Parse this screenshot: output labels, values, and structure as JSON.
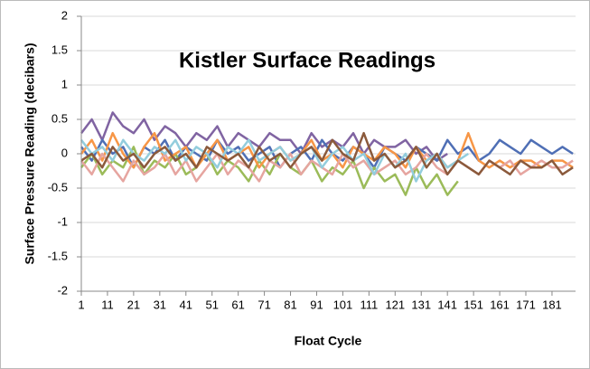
{
  "chart_data": {
    "type": "line",
    "title": "Kistler Surface Readings",
    "x_label": "Float Cycle",
    "y_label": "Surface Pressure Reading (decibars)",
    "x": [
      1,
      5,
      9,
      13,
      17,
      21,
      25,
      29,
      33,
      37,
      41,
      45,
      49,
      53,
      57,
      61,
      65,
      69,
      73,
      77,
      81,
      85,
      89,
      93,
      97,
      101,
      105,
      109,
      113,
      117,
      121,
      125,
      129,
      133,
      137,
      141,
      145,
      149,
      153,
      157,
      161,
      165,
      169,
      173,
      177,
      181,
      185,
      189
    ],
    "series": [
      {
        "color": "#8064a2",
        "values": [
          0.3,
          0.5,
          0.2,
          0.6,
          0.4,
          0.3,
          0.5,
          0.2,
          0.4,
          0.3,
          0.1,
          0.3,
          0.2,
          0.4,
          0.1,
          0.3,
          0.2,
          0.1,
          0.3,
          0.2,
          0.2,
          0.0,
          0.3,
          0.1,
          0.2,
          0.1,
          0.3,
          0.0,
          0.2,
          0.1,
          0.1,
          0.2,
          0.0,
          0.1,
          -0.1,
          0.0,
          null,
          null,
          null,
          null,
          null,
          null,
          null,
          null,
          null,
          null,
          null,
          null
        ]
      },
      {
        "color": "#4f6fb5",
        "values": [
          0.1,
          -0.1,
          0.2,
          0.0,
          0.1,
          -0.2,
          0.1,
          0.0,
          0.2,
          -0.1,
          0.1,
          0.0,
          -0.1,
          0.2,
          0.0,
          0.1,
          -0.1,
          0.0,
          0.1,
          -0.2,
          0.0,
          0.1,
          -0.1,
          0.2,
          0.0,
          -0.1,
          0.1,
          0.0,
          -0.2,
          0.1,
          0.0,
          -0.1,
          0.1,
          0.0,
          -0.1,
          0.2,
          0.0,
          0.1,
          -0.1,
          0.0,
          0.2,
          0.1,
          0.0,
          0.2,
          0.1,
          0.0,
          0.1,
          0.0
        ]
      },
      {
        "color": "#9bbb59",
        "values": [
          -0.2,
          0.0,
          -0.3,
          -0.1,
          -0.2,
          0.1,
          -0.3,
          -0.1,
          -0.2,
          0.0,
          -0.3,
          -0.2,
          0.0,
          -0.3,
          -0.1,
          -0.2,
          -0.4,
          -0.1,
          -0.3,
          0.0,
          -0.2,
          -0.3,
          -0.1,
          -0.4,
          -0.2,
          -0.3,
          -0.1,
          -0.5,
          -0.2,
          -0.4,
          -0.3,
          -0.6,
          -0.2,
          -0.5,
          -0.3,
          -0.6,
          -0.4,
          null,
          null,
          null,
          null,
          null,
          null,
          null,
          null,
          null,
          null,
          null
        ]
      },
      {
        "color": "#f79646",
        "values": [
          0.0,
          0.2,
          -0.1,
          0.3,
          0.0,
          -0.2,
          0.1,
          0.3,
          -0.1,
          0.0,
          0.1,
          -0.2,
          0.0,
          0.2,
          -0.1,
          0.0,
          0.1,
          -0.2,
          0.0,
          0.1,
          -0.1,
          0.0,
          0.2,
          -0.1,
          0.0,
          -0.2,
          0.1,
          0.0,
          -0.1,
          0.1,
          0.0,
          -0.2,
          0.1,
          -0.1,
          0.0,
          -0.2,
          -0.1,
          0.3,
          -0.1,
          -0.2,
          -0.1,
          -0.2,
          -0.1,
          -0.1,
          -0.2,
          -0.1,
          -0.1,
          -0.2
        ]
      },
      {
        "color": "#e6a5a0",
        "values": [
          -0.1,
          -0.3,
          0.0,
          -0.2,
          -0.4,
          -0.1,
          -0.3,
          -0.2,
          0.0,
          -0.3,
          -0.1,
          -0.4,
          -0.2,
          0.0,
          -0.3,
          -0.1,
          -0.2,
          -0.4,
          -0.1,
          -0.2,
          0.0,
          -0.3,
          -0.1,
          -0.2,
          -0.3,
          0.0,
          -0.2,
          -0.1,
          -0.3,
          -0.2,
          -0.1,
          -0.3,
          -0.2,
          0.0,
          -0.2,
          -0.3,
          -0.1,
          -0.2,
          -0.3,
          -0.1,
          -0.2,
          -0.1,
          -0.3,
          -0.2,
          -0.1,
          -0.2,
          -0.2,
          -0.1
        ]
      },
      {
        "color": "#93cddd",
        "values": [
          0.2,
          0.0,
          0.1,
          -0.1,
          0.2,
          0.0,
          -0.1,
          0.1,
          0.0,
          0.2,
          -0.1,
          0.1,
          0.0,
          -0.2,
          0.1,
          0.0,
          0.2,
          -0.1,
          0.0,
          0.1,
          -0.1,
          0.0,
          0.1,
          -0.2,
          0.0,
          0.1,
          -0.1,
          0.0,
          -0.3,
          0.0,
          -0.2,
          0.0,
          -0.4,
          -0.1,
          0.0,
          -0.2,
          -0.1,
          0.0,
          null,
          null,
          null,
          null,
          null,
          null,
          null,
          null,
          null,
          null
        ]
      },
      {
        "color": "#8b5a3c",
        "values": [
          -0.1,
          0.0,
          -0.2,
          0.1,
          -0.1,
          0.0,
          -0.2,
          0.0,
          0.1,
          -0.1,
          0.0,
          -0.2,
          0.1,
          0.0,
          -0.1,
          0.0,
          -0.2,
          0.1,
          -0.1,
          0.0,
          -0.2,
          0.0,
          0.1,
          -0.1,
          0.2,
          0.0,
          -0.1,
          0.3,
          -0.1,
          0.0,
          -0.2,
          -0.1,
          0.1,
          -0.2,
          0.0,
          -0.3,
          -0.1,
          -0.2,
          -0.3,
          -0.1,
          -0.2,
          -0.3,
          -0.1,
          -0.2,
          -0.2,
          -0.1,
          -0.3,
          -0.2
        ]
      }
    ],
    "xlim": [
      1,
      190
    ],
    "xticks": [
      1,
      11,
      21,
      31,
      41,
      51,
      61,
      71,
      81,
      91,
      101,
      111,
      121,
      131,
      141,
      151,
      161,
      171,
      181
    ],
    "ylim": [
      -2,
      2
    ],
    "yticks": [
      -2,
      -1.5,
      -1,
      -0.5,
      0,
      0.5,
      1,
      1.5,
      2
    ],
    "grid": true
  }
}
